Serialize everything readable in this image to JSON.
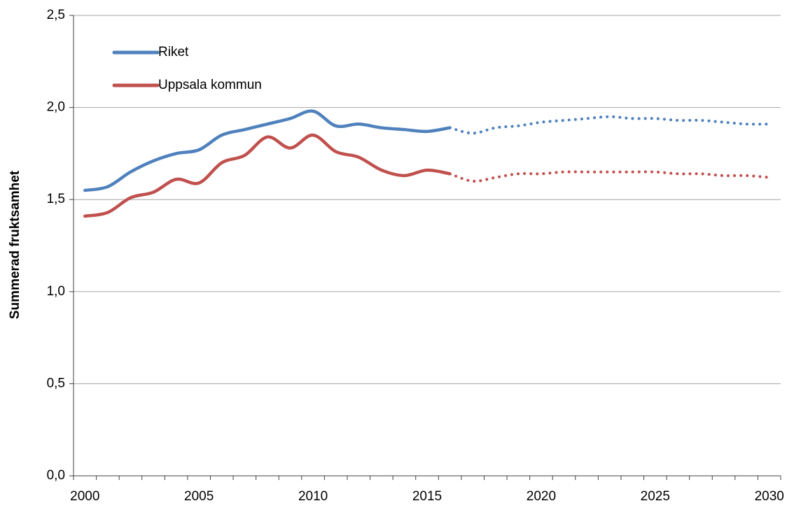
{
  "chart_data": {
    "type": "line",
    "y_label": "Summerad fruktsamhet",
    "categories": [
      "2000",
      null,
      null,
      null,
      null,
      "2005",
      null,
      null,
      null,
      null,
      "2010",
      null,
      null,
      null,
      null,
      "2015",
      null,
      null,
      null,
      null,
      "2020",
      null,
      null,
      null,
      null,
      "2025",
      null,
      null,
      null,
      null,
      "2030"
    ],
    "series": [
      {
        "name": "Riket",
        "color": "#4f81bd",
        "solid_until_index": 16,
        "values": [
          1.55,
          1.57,
          1.65,
          1.71,
          1.75,
          1.77,
          1.85,
          1.88,
          1.91,
          1.94,
          1.98,
          1.9,
          1.91,
          1.89,
          1.88,
          1.87,
          1.89,
          1.86,
          1.89,
          1.9,
          1.92,
          1.93,
          1.94,
          1.95,
          1.94,
          1.94,
          1.93,
          1.93,
          1.92,
          1.91,
          1.91
        ]
      },
      {
        "name": "Uppsala kommun",
        "color": "#c0504d",
        "solid_until_index": 16,
        "values": [
          1.41,
          1.43,
          1.51,
          1.54,
          1.61,
          1.59,
          1.7,
          1.74,
          1.84,
          1.78,
          1.85,
          1.76,
          1.73,
          1.66,
          1.63,
          1.66,
          1.64,
          1.6,
          1.62,
          1.64,
          1.64,
          1.65,
          1.65,
          1.65,
          1.65,
          1.65,
          1.64,
          1.64,
          1.63,
          1.63,
          1.62
        ]
      }
    ],
    "ylim": [
      0,
      2.5
    ],
    "yticks": [
      {
        "value": 0,
        "label": "0,0"
      },
      {
        "value": 0.5,
        "label": "0,5"
      },
      {
        "value": 1,
        "label": "1,0"
      },
      {
        "value": 1.5,
        "label": "1,5"
      },
      {
        "value": 2,
        "label": "2,0"
      },
      {
        "value": 2.5,
        "label": "2,5"
      }
    ],
    "grid": true,
    "legend": "upper left"
  }
}
